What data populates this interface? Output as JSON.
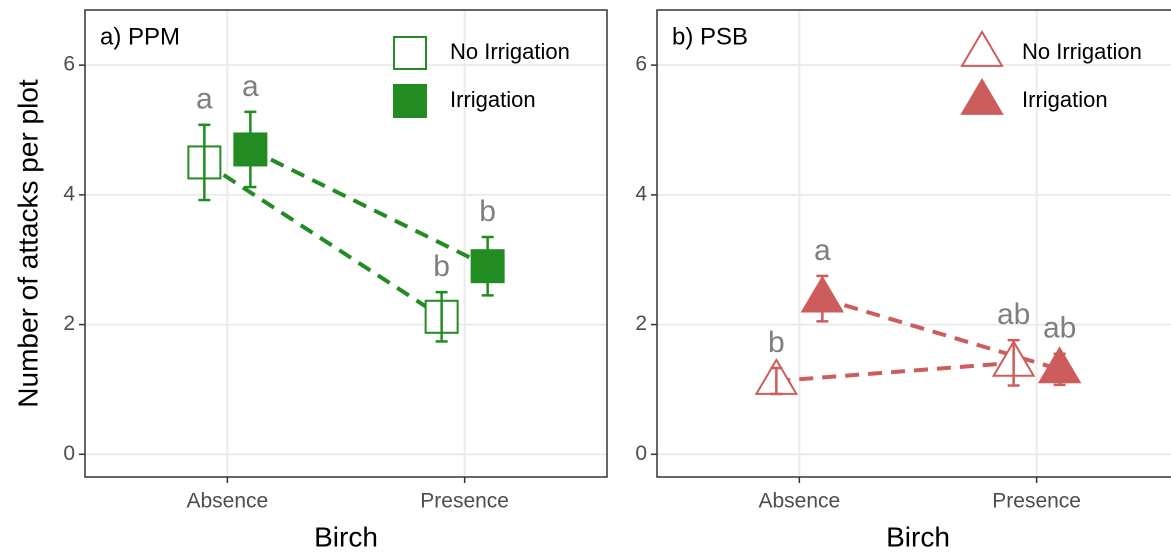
{
  "chart_data": [
    {
      "type": "line",
      "title": "a) PPM",
      "xlabel": "Birch",
      "ylabel": "Number of attacks per plot",
      "categories": [
        "Absence",
        "Presence"
      ],
      "ylim": [
        -0.35,
        6.85
      ],
      "yticks": [
        0,
        2,
        4,
        6
      ],
      "grid": true,
      "marker": "square",
      "legend": "top-right",
      "series": [
        {
          "name": "No Irrigation",
          "color": "#228b22",
          "filled": false,
          "values": [
            4.5,
            2.12
          ],
          "errors": [
            0.58,
            0.38
          ],
          "labels": [
            "a",
            "b"
          ]
        },
        {
          "name": "Irrigation",
          "color": "#228b22",
          "filled": true,
          "values": [
            4.7,
            2.9
          ],
          "errors": [
            0.58,
            0.45
          ],
          "labels": [
            "a",
            "b"
          ]
        }
      ]
    },
    {
      "type": "line",
      "title": "b) PSB",
      "xlabel": "Birch",
      "categories": [
        "Absence",
        "Presence"
      ],
      "ylim": [
        -0.35,
        6.85
      ],
      "yticks": [
        0,
        2,
        4,
        6
      ],
      "grid": true,
      "marker": "triangle",
      "legend": "top-right",
      "series": [
        {
          "name": "No Irrigation",
          "color": "#cd5c5c",
          "filled": false,
          "values": [
            1.13,
            1.41
          ],
          "errors": [
            0.2,
            0.35
          ],
          "labels": [
            "b",
            "ab"
          ]
        },
        {
          "name": "Irrigation",
          "color": "#cd5c5c",
          "filled": true,
          "values": [
            2.4,
            1.31
          ],
          "errors": [
            0.35,
            0.24
          ],
          "labels": [
            "a",
            "ab"
          ]
        }
      ]
    }
  ]
}
